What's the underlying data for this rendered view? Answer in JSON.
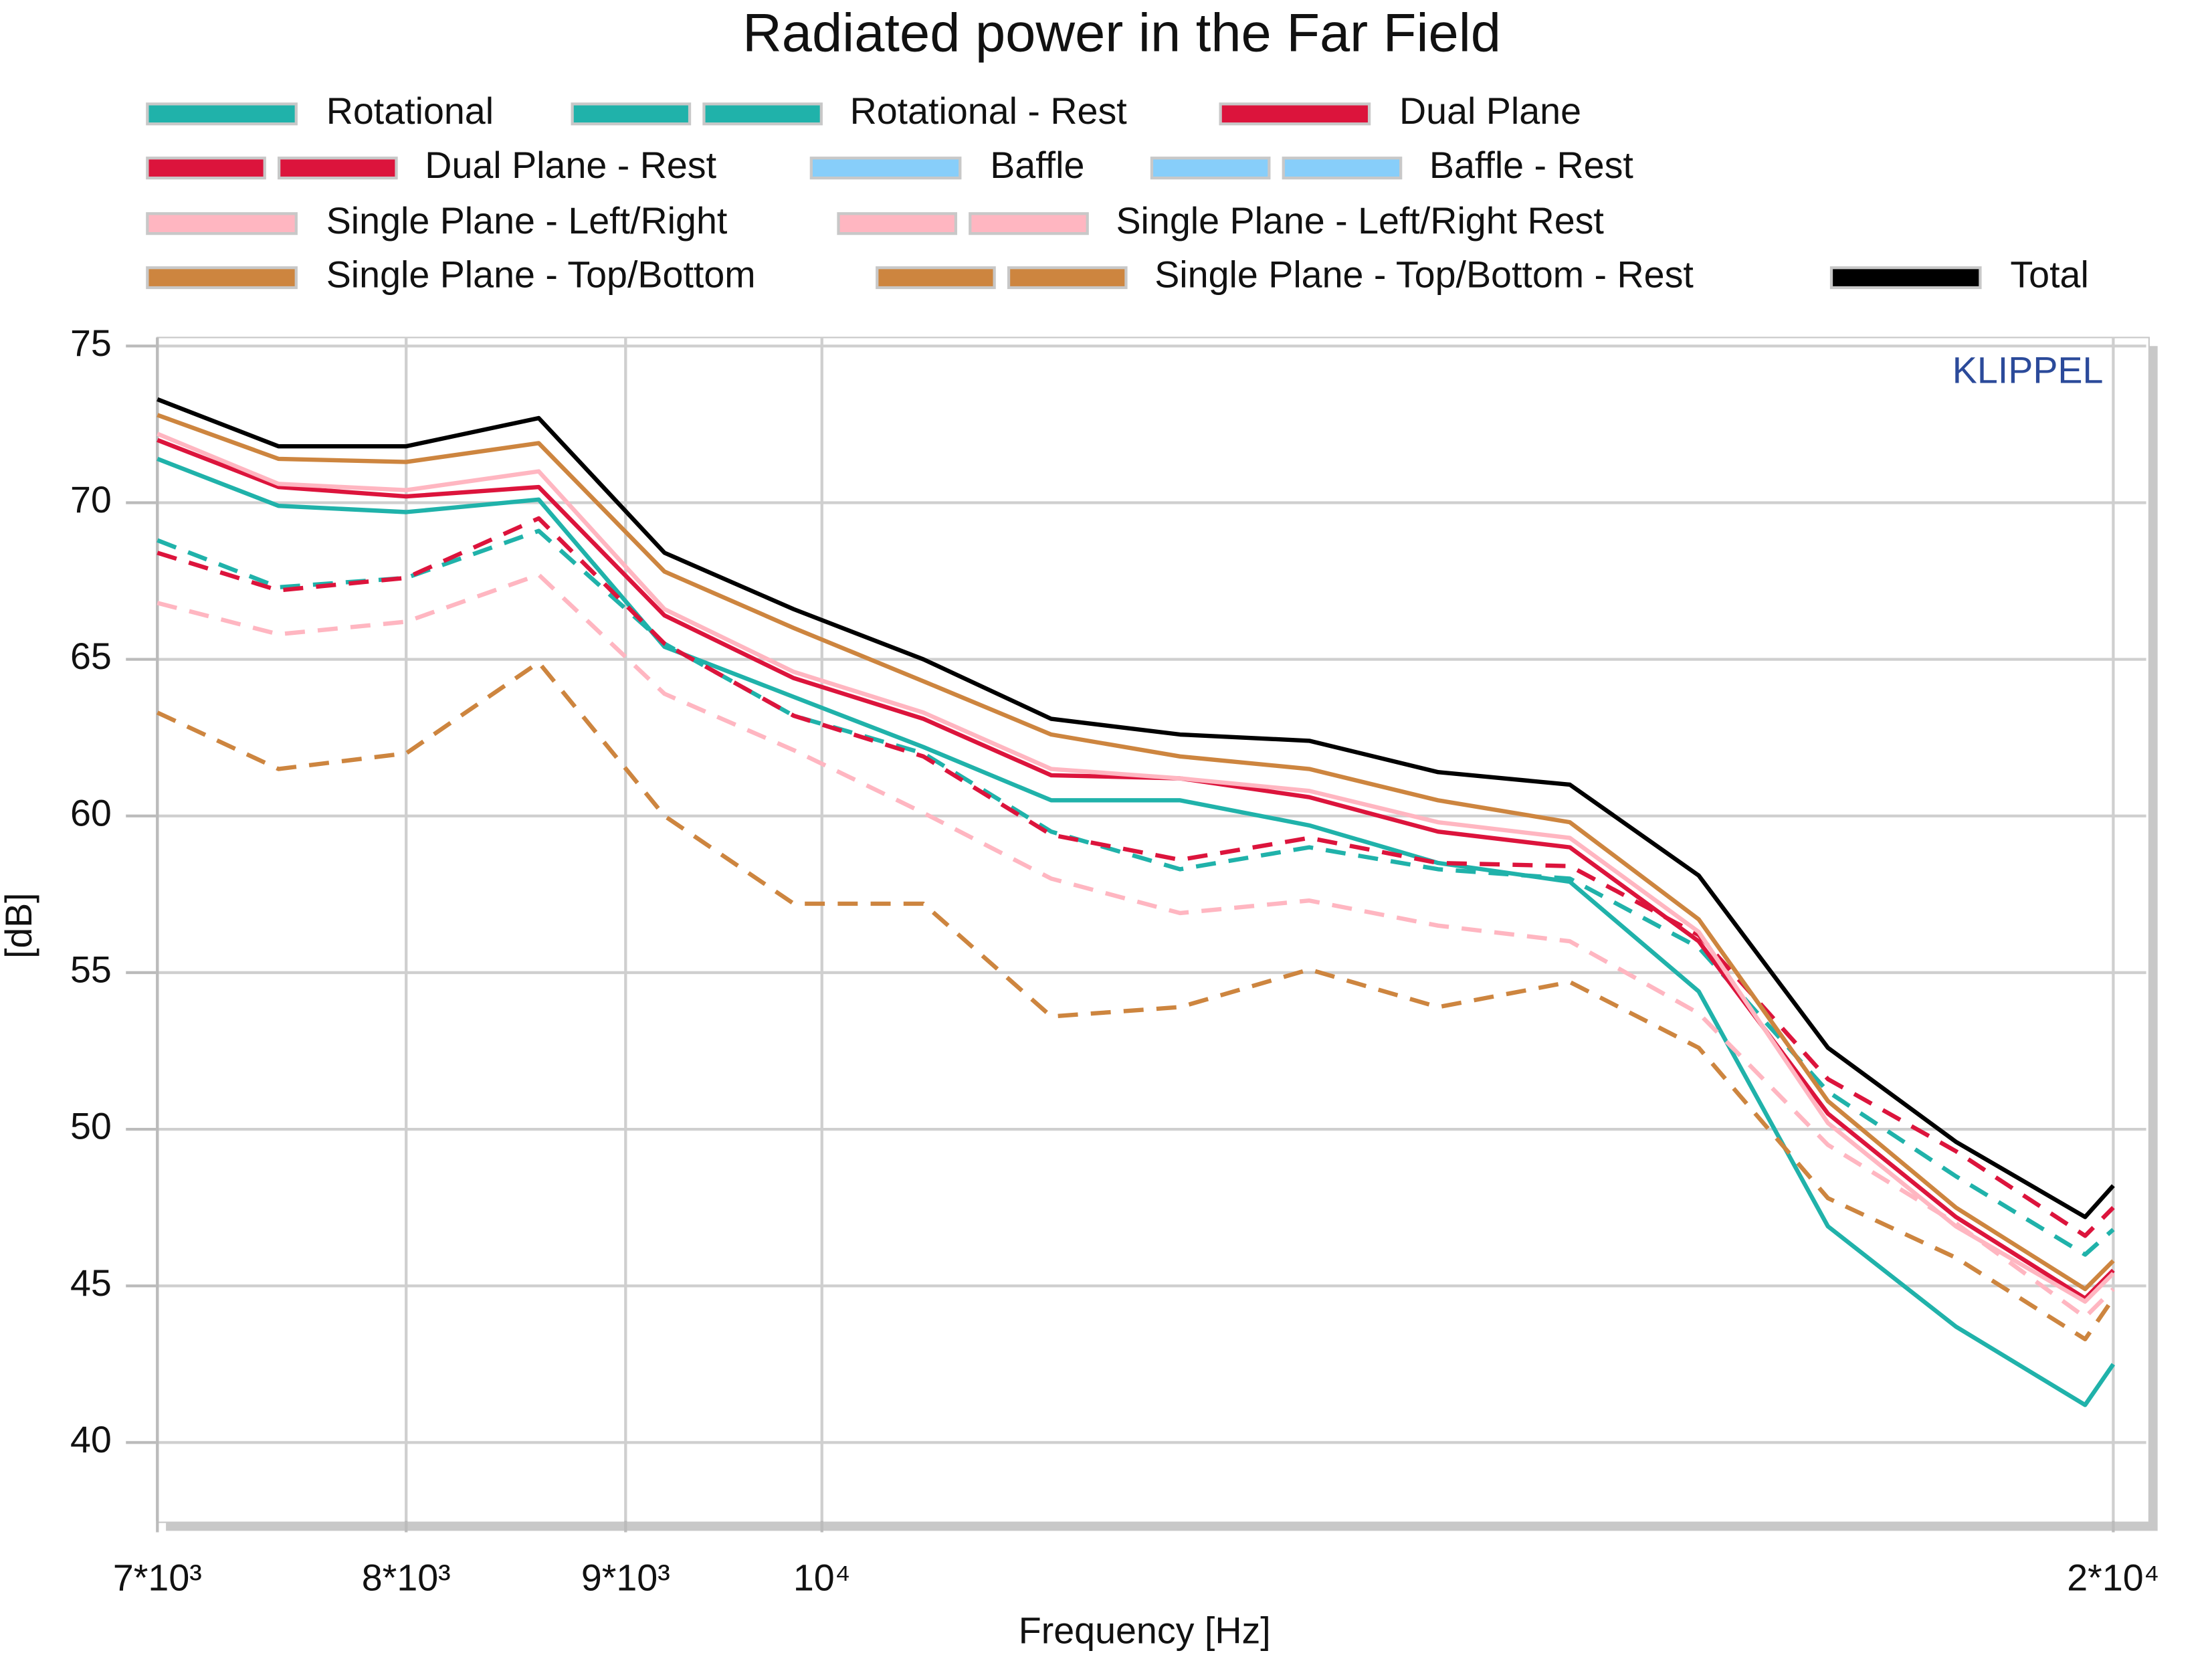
{
  "chart_data": {
    "type": "line",
    "title": "Radiated power in the Far Field",
    "x_label": "Frequency [Hz]",
    "y_label": "[dB]",
    "annotation": "KLIPPEL",
    "log_x": true,
    "grid": true,
    "xlim": [
      7000,
      20000
    ],
    "ylim": [
      37.5,
      75
    ],
    "xticks": [
      {
        "value": 7000,
        "label": "7*10³"
      },
      {
        "value": 8000,
        "label": "8*10³"
      },
      {
        "value": 9000,
        "label": "9*10³"
      },
      {
        "value": 10000,
        "label": "10⁴"
      },
      {
        "value": 20000,
        "label": "2*10⁴"
      }
    ],
    "yticks": [
      40,
      45,
      50,
      55,
      60,
      65,
      70,
      75
    ],
    "x": [
      7000,
      7470,
      8000,
      8590,
      9190,
      9850,
      10560,
      11310,
      12120,
      12990,
      13920,
      14940,
      16010,
      17160,
      18380,
      19700,
      20000
    ],
    "series": [
      {
        "name": "Rotational",
        "color": "#20b2aa",
        "dashed": false,
        "values": [
          71.4,
          69.9,
          69.7,
          70.1,
          65.4,
          63.8,
          62.2,
          60.5,
          60.5,
          59.7,
          58.5,
          57.9,
          54.4,
          46.9,
          43.7,
          41.2,
          42.5
        ]
      },
      {
        "name": "Rotational - Rest",
        "color": "#20b2aa",
        "dashed": true,
        "values": [
          68.8,
          67.3,
          67.6,
          69.1,
          65.5,
          63.2,
          62.0,
          59.5,
          58.3,
          59.0,
          58.3,
          58.0,
          55.8,
          51.2,
          48.5,
          46.0,
          46.8
        ]
      },
      {
        "name": "Dual Plane",
        "color": "#dc143c",
        "dashed": false,
        "values": [
          72.0,
          70.5,
          70.2,
          70.5,
          66.4,
          64.4,
          63.1,
          61.3,
          61.2,
          60.6,
          59.5,
          59.0,
          56.0,
          50.5,
          47.2,
          44.6,
          45.5
        ]
      },
      {
        "name": "Dual Plane - Rest",
        "color": "#dc143c",
        "dashed": true,
        "values": [
          68.4,
          67.2,
          67.6,
          69.5,
          65.5,
          63.2,
          61.9,
          59.4,
          58.6,
          59.3,
          58.5,
          58.4,
          56.2,
          51.6,
          49.3,
          46.6,
          47.5
        ]
      },
      {
        "name": "Baffle",
        "color": "#87cefa",
        "dashed": false,
        "values": [
          null,
          null,
          null,
          null,
          null,
          null,
          null,
          null,
          null,
          null,
          null,
          null,
          null,
          null,
          null,
          null,
          null
        ]
      },
      {
        "name": "Baffle - Rest",
        "color": "#87cefa",
        "dashed": true,
        "values": [
          null,
          null,
          null,
          null,
          null,
          null,
          null,
          null,
          null,
          null,
          null,
          null,
          null,
          null,
          null,
          null,
          null
        ]
      },
      {
        "name": "Single Plane - Left/Right",
        "color": "#ffb6c1",
        "dashed": false,
        "values": [
          72.2,
          70.6,
          70.4,
          71.0,
          66.6,
          64.6,
          63.3,
          61.5,
          61.2,
          60.8,
          59.8,
          59.3,
          56.3,
          50.2,
          46.9,
          44.5,
          45.4
        ]
      },
      {
        "name": "Single Plane - Left/Right Rest",
        "color": "#ffb6c1",
        "dashed": true,
        "values": [
          66.8,
          65.8,
          66.2,
          67.7,
          63.9,
          62.1,
          60.1,
          58.0,
          56.9,
          57.3,
          56.5,
          56.0,
          53.7,
          49.5,
          47.0,
          44.0,
          44.9
        ]
      },
      {
        "name": "Single Plane - Top/Bottom",
        "color": "#cd853f",
        "dashed": false,
        "values": [
          72.8,
          71.4,
          71.3,
          71.9,
          67.8,
          66.0,
          64.3,
          62.6,
          61.9,
          61.5,
          60.5,
          59.8,
          56.7,
          50.9,
          47.5,
          44.9,
          45.8
        ]
      },
      {
        "name": "Single Plane - Top/Bottom - Rest",
        "color": "#cd853f",
        "dashed": true,
        "values": [
          63.3,
          61.5,
          62.0,
          64.9,
          60.0,
          57.2,
          57.2,
          53.6,
          53.9,
          55.1,
          53.9,
          54.7,
          52.6,
          47.8,
          45.9,
          43.3,
          44.6
        ]
      },
      {
        "name": "Total",
        "color": "#000000",
        "dashed": false,
        "values": [
          73.3,
          71.8,
          71.8,
          72.7,
          68.4,
          66.6,
          65.0,
          63.1,
          62.6,
          62.4,
          61.4,
          61.0,
          58.1,
          52.6,
          49.6,
          47.2,
          48.2
        ]
      }
    ]
  }
}
